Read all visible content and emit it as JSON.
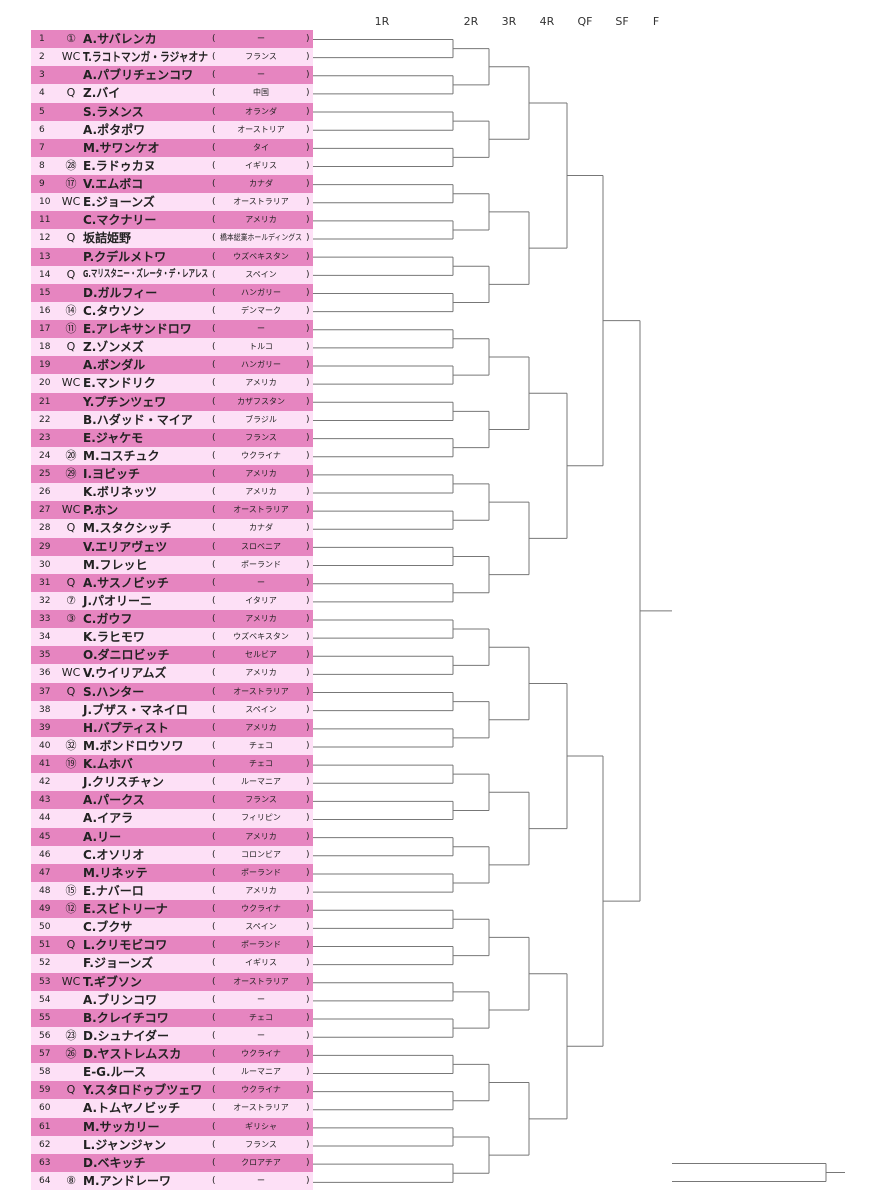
{
  "rounds": [
    "1R",
    "2R",
    "3R",
    "4R",
    "QF",
    "SF",
    "F"
  ],
  "colors": {
    "odd_row": "#e685c0",
    "even_row": "#fde0f6",
    "line": "#777777"
  },
  "players": [
    {
      "no": "1",
      "seed": "①",
      "name": "A.サバレンカ",
      "country": "ー"
    },
    {
      "no": "2",
      "seed": "WC",
      "name": "T.ラコトマンガ・ラジャオナ",
      "country": "フランス"
    },
    {
      "no": "3",
      "seed": "",
      "name": "A.パブリチェンコワ",
      "country": "ー"
    },
    {
      "no": "4",
      "seed": "Q",
      "name": "Z.バイ",
      "country": "中国"
    },
    {
      "no": "5",
      "seed": "",
      "name": "S.ラメンス",
      "country": "オランダ"
    },
    {
      "no": "6",
      "seed": "",
      "name": "A.ポタポワ",
      "country": "オーストリア"
    },
    {
      "no": "7",
      "seed": "",
      "name": "M.サワンケオ",
      "country": "タイ"
    },
    {
      "no": "8",
      "seed": "㉘",
      "name": "E.ラドゥカヌ",
      "country": "イギリス"
    },
    {
      "no": "9",
      "seed": "⑰",
      "name": "V.エムボコ",
      "country": "カナダ"
    },
    {
      "no": "10",
      "seed": "WC",
      "name": "E.ジョーンズ",
      "country": "オーストラリア"
    },
    {
      "no": "11",
      "seed": "",
      "name": "C.マクナリー",
      "country": "アメリカ"
    },
    {
      "no": "12",
      "seed": "Q",
      "name": "坂詰姫野",
      "country": "橋本総業ホールディングス"
    },
    {
      "no": "13",
      "seed": "",
      "name": "P.クデルメトワ",
      "country": "ウズベキスタン"
    },
    {
      "no": "14",
      "seed": "Q",
      "name": "G.マリスタニー・ズレータ・デ・レアレス",
      "country": "スペイン"
    },
    {
      "no": "15",
      "seed": "",
      "name": "D.ガルフィー",
      "country": "ハンガリー"
    },
    {
      "no": "16",
      "seed": "⑭",
      "name": "C.タウソン",
      "country": "デンマーク"
    },
    {
      "no": "17",
      "seed": "⑪",
      "name": "E.アレキサンドロワ",
      "country": "ー"
    },
    {
      "no": "18",
      "seed": "Q",
      "name": "Z.ゾンメズ",
      "country": "トルコ"
    },
    {
      "no": "19",
      "seed": "",
      "name": "A.ボンダル",
      "country": "ハンガリー"
    },
    {
      "no": "20",
      "seed": "WC",
      "name": "E.マンドリク",
      "country": "アメリカ"
    },
    {
      "no": "21",
      "seed": "",
      "name": "Y.プチンツェワ",
      "country": "カザフスタン"
    },
    {
      "no": "22",
      "seed": "",
      "name": "B.ハダッド・マイア",
      "country": "ブラジル"
    },
    {
      "no": "23",
      "seed": "",
      "name": "E.ジャケモ",
      "country": "フランス"
    },
    {
      "no": "24",
      "seed": "⑳",
      "name": "M.コスチュク",
      "country": "ウクライナ"
    },
    {
      "no": "25",
      "seed": "㉙",
      "name": "I.ヨビッチ",
      "country": "アメリカ"
    },
    {
      "no": "26",
      "seed": "",
      "name": "K.ボリネッツ",
      "country": "アメリカ"
    },
    {
      "no": "27",
      "seed": "WC",
      "name": "P.ホン",
      "country": "オーストラリア"
    },
    {
      "no": "28",
      "seed": "Q",
      "name": "M.スタクシッチ",
      "country": "カナダ"
    },
    {
      "no": "29",
      "seed": "",
      "name": "V.エリアヴェツ",
      "country": "スロベニア"
    },
    {
      "no": "30",
      "seed": "",
      "name": "M.フレッヒ",
      "country": "ポーランド"
    },
    {
      "no": "31",
      "seed": "Q",
      "name": "A.サスノビッチ",
      "country": "ー"
    },
    {
      "no": "32",
      "seed": "⑦",
      "name": "J.パオリーニ",
      "country": "イタリア"
    },
    {
      "no": "33",
      "seed": "③",
      "name": "C.ガウフ",
      "country": "アメリカ"
    },
    {
      "no": "34",
      "seed": "",
      "name": "K.ラヒモワ",
      "country": "ウズベキスタン"
    },
    {
      "no": "35",
      "seed": "",
      "name": "O.ダニロビッチ",
      "country": "セルビア"
    },
    {
      "no": "36",
      "seed": "WC",
      "name": "V.ウイリアムズ",
      "country": "アメリカ"
    },
    {
      "no": "37",
      "seed": "Q",
      "name": "S.ハンター",
      "country": "オーストラリア"
    },
    {
      "no": "38",
      "seed": "",
      "name": "J.ブザス・マネイロ",
      "country": "スペイン"
    },
    {
      "no": "39",
      "seed": "",
      "name": "H.バプティスト",
      "country": "アメリカ"
    },
    {
      "no": "40",
      "seed": "㉜",
      "name": "M.ボンドロウソワ",
      "country": "チェコ"
    },
    {
      "no": "41",
      "seed": "⑲",
      "name": "K.ムホバ",
      "country": "チェコ"
    },
    {
      "no": "42",
      "seed": "",
      "name": "J.クリスチャン",
      "country": "ルーマニア"
    },
    {
      "no": "43",
      "seed": "",
      "name": "A.パークス",
      "country": "フランス"
    },
    {
      "no": "44",
      "seed": "",
      "name": "A.イアラ",
      "country": "フィリピン"
    },
    {
      "no": "45",
      "seed": "",
      "name": "A.リー",
      "country": "アメリカ"
    },
    {
      "no": "46",
      "seed": "",
      "name": "C.オソリオ",
      "country": "コロンビア"
    },
    {
      "no": "47",
      "seed": "",
      "name": "M.リネッテ",
      "country": "ポーランド"
    },
    {
      "no": "48",
      "seed": "⑮",
      "name": "E.ナバーロ",
      "country": "アメリカ"
    },
    {
      "no": "49",
      "seed": "⑫",
      "name": "E.スビトリーナ",
      "country": "ウクライナ"
    },
    {
      "no": "50",
      "seed": "",
      "name": "C.ブクサ",
      "country": "スペイン"
    },
    {
      "no": "51",
      "seed": "Q",
      "name": "L.クリモビコワ",
      "country": "ポーランド"
    },
    {
      "no": "52",
      "seed": "",
      "name": "F.ジョーンズ",
      "country": "イギリス"
    },
    {
      "no": "53",
      "seed": "WC",
      "name": "T.ギブソン",
      "country": "オーストラリア"
    },
    {
      "no": "54",
      "seed": "",
      "name": "A.ブリンコワ",
      "country": "ー"
    },
    {
      "no": "55",
      "seed": "",
      "name": "B.クレイチコワ",
      "country": "チェコ"
    },
    {
      "no": "56",
      "seed": "㉓",
      "name": "D.シュナイダー",
      "country": "ー"
    },
    {
      "no": "57",
      "seed": "㉖",
      "name": "D.ヤストレムスカ",
      "country": "ウクライナ"
    },
    {
      "no": "58",
      "seed": "",
      "name": "E-G.ルース",
      "country": "ルーマニア"
    },
    {
      "no": "59",
      "seed": "Q",
      "name": "Y.スタロドゥブツェワ",
      "country": "ウクライナ"
    },
    {
      "no": "60",
      "seed": "",
      "name": "A.トムヤノビッチ",
      "country": "オーストラリア"
    },
    {
      "no": "61",
      "seed": "",
      "name": "M.サッカリー",
      "country": "ギリシャ"
    },
    {
      "no": "62",
      "seed": "",
      "name": "L.ジャンジャン",
      "country": "フランス"
    },
    {
      "no": "63",
      "seed": "",
      "name": "D.ベキッチ",
      "country": "クロアチア"
    },
    {
      "no": "64",
      "seed": "⑧",
      "name": "M.アンドレーワ",
      "country": "ー"
    }
  ]
}
